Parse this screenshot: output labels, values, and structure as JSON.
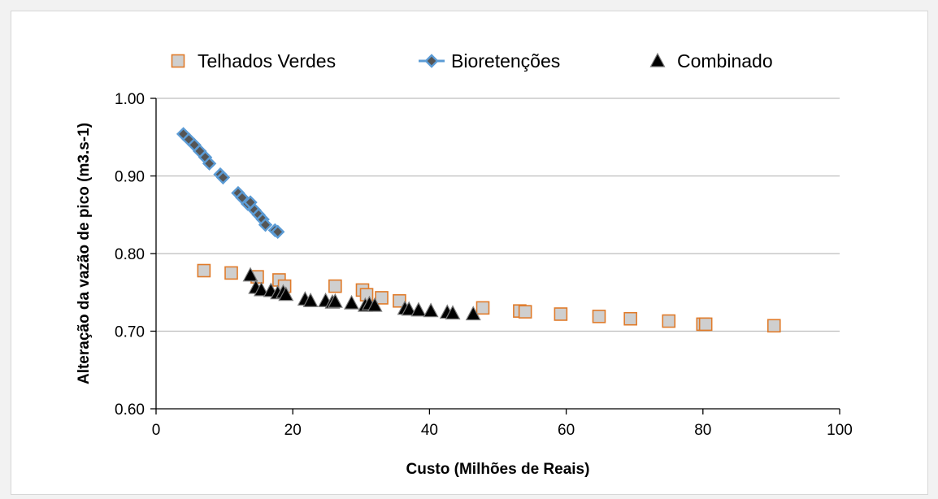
{
  "chart_data": {
    "type": "scatter",
    "title": "",
    "xlabel": "Custo (Milhões de Reais)",
    "ylabel": "Alteração da vazão de pico (m3.s-1)",
    "xlim": [
      0,
      100
    ],
    "ylim": [
      0.6,
      1.0
    ],
    "xticks": [
      0,
      20,
      40,
      60,
      80,
      100
    ],
    "yticks": [
      0.6,
      0.7,
      0.8,
      0.9,
      1.0
    ],
    "xtick_labels": [
      "0",
      "20",
      "40",
      "60",
      "80",
      "100"
    ],
    "ytick_labels": [
      "0.60",
      "0.70",
      "0.80",
      "0.90",
      "1.00"
    ],
    "grid": "horizontal",
    "legend_position": "top",
    "series": [
      {
        "name": "Telhados Verdes",
        "marker": "square",
        "fill": "#cfcfcf",
        "stroke": "#e07b2a",
        "x": [
          7.0,
          11.0,
          14.8,
          18.0,
          18.8,
          26.2,
          30.2,
          30.8,
          33.0,
          35.6,
          47.8,
          53.2,
          54.0,
          59.2,
          64.8,
          69.4,
          75.0,
          80.0,
          80.4,
          90.4
        ],
        "y": [
          0.778,
          0.775,
          0.77,
          0.766,
          0.758,
          0.758,
          0.753,
          0.747,
          0.743,
          0.739,
          0.73,
          0.726,
          0.725,
          0.722,
          0.719,
          0.716,
          0.713,
          0.709,
          0.709,
          0.707
        ]
      },
      {
        "name": "Bioretenções",
        "marker": "diamond",
        "fill": "#555555",
        "stroke": "#5b9bd5",
        "x": [
          4.0,
          4.8,
          5.6,
          6.4,
          7.2,
          7.8,
          9.4,
          9.8,
          12.0,
          12.6,
          13.4,
          13.8,
          14.4,
          15.0,
          15.6,
          16.0,
          17.4,
          17.8
        ],
        "y": [
          0.954,
          0.947,
          0.94,
          0.932,
          0.924,
          0.916,
          0.902,
          0.898,
          0.878,
          0.872,
          0.864,
          0.866,
          0.856,
          0.85,
          0.844,
          0.837,
          0.83,
          0.828
        ]
      },
      {
        "name": "Combinado",
        "marker": "triangle",
        "fill": "#000000",
        "stroke": "#7a7a7a",
        "x": [
          13.8,
          14.6,
          15.4,
          16.8,
          17.8,
          18.6,
          19.0,
          21.8,
          22.6,
          24.8,
          25.8,
          26.2,
          28.6,
          30.6,
          31.2,
          32.0,
          36.4,
          37.0,
          38.4,
          40.2,
          42.6,
          43.4,
          46.4
        ],
        "y": [
          0.772,
          0.756,
          0.753,
          0.752,
          0.749,
          0.75,
          0.747,
          0.741,
          0.739,
          0.739,
          0.737,
          0.738,
          0.736,
          0.733,
          0.735,
          0.733,
          0.729,
          0.728,
          0.727,
          0.726,
          0.724,
          0.723,
          0.722
        ]
      }
    ]
  }
}
